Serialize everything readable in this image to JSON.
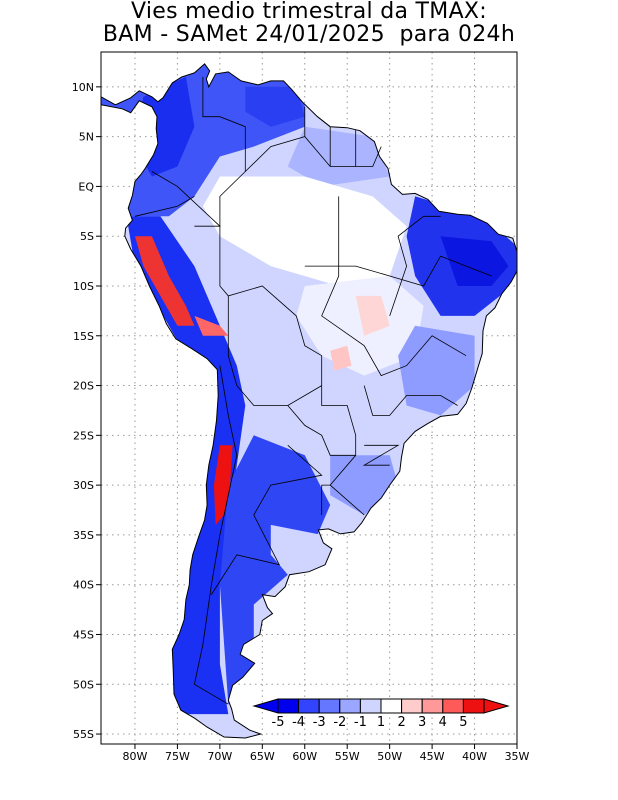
{
  "title": {
    "line1": "Vies medio trimestral da TMAX:",
    "line2": "BAM - SAMet 24/01/2025  para 024h"
  },
  "map": {
    "lon_range": [
      -84,
      -35
    ],
    "lat_range": [
      -56,
      13.5
    ],
    "grid": true,
    "lon_ticks": [
      "80W",
      "75W",
      "70W",
      "65W",
      "60W",
      "55W",
      "50W",
      "45W",
      "40W",
      "35W"
    ],
    "lat_ticks": [
      "10N",
      "5N",
      "EQ",
      "5S",
      "10S",
      "15S",
      "20S",
      "25S",
      "30S",
      "35S",
      "40S",
      "45S",
      "50S",
      "55S"
    ]
  },
  "colorbar": {
    "labels": [
      "-5",
      "-4",
      "-3",
      "-2",
      "-1",
      "1",
      "2",
      "3",
      "4",
      "5"
    ],
    "colors": [
      "#0000ee",
      "#3344ff",
      "#6677ff",
      "#9aa6ff",
      "#cfd5ff",
      "#ffffff",
      "#ffcccc",
      "#ff9999",
      "#ff5a5a",
      "#ee1111"
    ]
  },
  "regions": [
    {
      "name": "north-coast-cold",
      "color": "#2f45f5"
    },
    {
      "name": "amazon-neutral",
      "color": "#ffffff"
    },
    {
      "name": "northeast-cold",
      "color": "#2233ee"
    },
    {
      "name": "andes-cold",
      "color": "#1122ee"
    },
    {
      "name": "andes-warm",
      "color": "#ee2222"
    },
    {
      "name": "center-light",
      "color": "#cfd5ff"
    }
  ]
}
